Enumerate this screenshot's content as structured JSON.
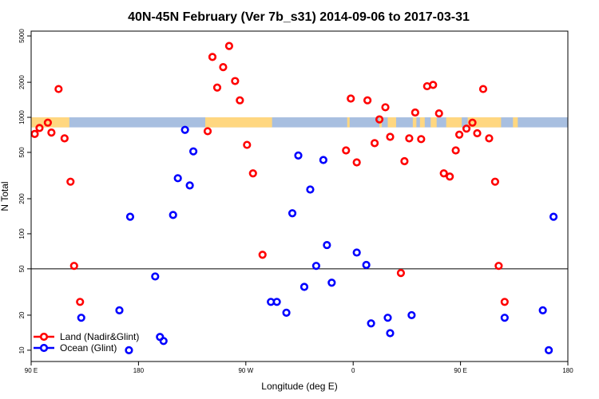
{
  "chart_data": {
    "type": "scatter",
    "title": "40N-45N February (Ver 7b_s31)   2014-09-06 to 2017-03-31",
    "xlabel": "Longitude (deg E)",
    "ylabel": "N Total",
    "xscale": "linear",
    "yscale": "log",
    "xlim": [
      90,
      540
    ],
    "ylim": [
      8,
      5500
    ],
    "x_tick_values": [
      90,
      180,
      270,
      360,
      450,
      540
    ],
    "x_tick_labels": [
      "90 E",
      "180",
      "90 W",
      "0",
      "90 E",
      "180"
    ],
    "y_tick_values": [
      10,
      20,
      50,
      100,
      200,
      500,
      1000,
      2000,
      5000
    ],
    "y_tick_labels": [
      "10",
      "20",
      "50",
      "100",
      "200",
      "500",
      "1000",
      "2000",
      "5000"
    ],
    "reference_lines_y": [
      50
    ],
    "land_ocean_strip": {
      "y_range": [
        820,
        1000
      ],
      "land_color": "#ffd780",
      "ocean_color": "#a8bfe0",
      "land_x_ranges": [
        [
          90,
          122
        ],
        [
          236,
          292
        ],
        [
          355,
          357
        ],
        [
          382,
          384
        ],
        [
          389,
          396
        ],
        [
          410,
          413
        ],
        [
          416,
          420
        ],
        [
          425,
          430
        ],
        [
          438,
          451
        ],
        [
          456,
          484
        ],
        [
          494,
          498
        ]
      ]
    },
    "legend_position": "bottom-left",
    "series": [
      {
        "name": "Land (Nadir&Glint)",
        "color": "#ff0000",
        "points": [
          {
            "x": 93,
            "y": 720
          },
          {
            "x": 97,
            "y": 810
          },
          {
            "x": 104,
            "y": 900
          },
          {
            "x": 107,
            "y": 740
          },
          {
            "x": 113,
            "y": 1750
          },
          {
            "x": 118,
            "y": 660
          },
          {
            "x": 123,
            "y": 280
          },
          {
            "x": 126,
            "y": 53
          },
          {
            "x": 131,
            "y": 26
          },
          {
            "x": 238,
            "y": 760
          },
          {
            "x": 242,
            "y": 3300
          },
          {
            "x": 246,
            "y": 1800
          },
          {
            "x": 251,
            "y": 2700
          },
          {
            "x": 256,
            "y": 4100
          },
          {
            "x": 261,
            "y": 2050
          },
          {
            "x": 265,
            "y": 1400
          },
          {
            "x": 271,
            "y": 580
          },
          {
            "x": 276,
            "y": 330
          },
          {
            "x": 284,
            "y": 66
          },
          {
            "x": 354,
            "y": 520
          },
          {
            "x": 358,
            "y": 1450
          },
          {
            "x": 363,
            "y": 410
          },
          {
            "x": 372,
            "y": 1400
          },
          {
            "x": 378,
            "y": 600
          },
          {
            "x": 382,
            "y": 960
          },
          {
            "x": 387,
            "y": 1220
          },
          {
            "x": 391,
            "y": 680
          },
          {
            "x": 400,
            "y": 46
          },
          {
            "x": 403,
            "y": 420
          },
          {
            "x": 407,
            "y": 660
          },
          {
            "x": 412,
            "y": 1100
          },
          {
            "x": 417,
            "y": 650
          },
          {
            "x": 422,
            "y": 1850
          },
          {
            "x": 427,
            "y": 1900
          },
          {
            "x": 432,
            "y": 1080
          },
          {
            "x": 436,
            "y": 330
          },
          {
            "x": 441,
            "y": 310
          },
          {
            "x": 446,
            "y": 520
          },
          {
            "x": 449,
            "y": 710
          },
          {
            "x": 455,
            "y": 800
          },
          {
            "x": 460,
            "y": 900
          },
          {
            "x": 464,
            "y": 730
          },
          {
            "x": 469,
            "y": 1750
          },
          {
            "x": 474,
            "y": 660
          },
          {
            "x": 479,
            "y": 280
          },
          {
            "x": 482,
            "y": 53
          },
          {
            "x": 487,
            "y": 26
          }
        ]
      },
      {
        "name": "Ocean (Glint)",
        "color": "#0000ff",
        "points": [
          {
            "x": 132,
            "y": 19
          },
          {
            "x": 164,
            "y": 22
          },
          {
            "x": 172,
            "y": 10
          },
          {
            "x": 173,
            "y": 140
          },
          {
            "x": 194,
            "y": 43
          },
          {
            "x": 198,
            "y": 13
          },
          {
            "x": 201,
            "y": 12
          },
          {
            "x": 209,
            "y": 145
          },
          {
            "x": 213,
            "y": 300
          },
          {
            "x": 219,
            "y": 780
          },
          {
            "x": 223,
            "y": 260
          },
          {
            "x": 226,
            "y": 510
          },
          {
            "x": 291,
            "y": 26
          },
          {
            "x": 296,
            "y": 26
          },
          {
            "x": 304,
            "y": 21
          },
          {
            "x": 309,
            "y": 150
          },
          {
            "x": 314,
            "y": 470
          },
          {
            "x": 319,
            "y": 35
          },
          {
            "x": 324,
            "y": 240
          },
          {
            "x": 329,
            "y": 53
          },
          {
            "x": 335,
            "y": 430
          },
          {
            "x": 338,
            "y": 80
          },
          {
            "x": 342,
            "y": 38
          },
          {
            "x": 363,
            "y": 69
          },
          {
            "x": 371,
            "y": 54
          },
          {
            "x": 375,
            "y": 17
          },
          {
            "x": 389,
            "y": 19
          },
          {
            "x": 391,
            "y": 14
          },
          {
            "x": 409,
            "y": 20
          },
          {
            "x": 519,
            "y": 22
          },
          {
            "x": 524,
            "y": 10
          },
          {
            "x": 528,
            "y": 140
          },
          {
            "x": 487,
            "y": 19
          }
        ]
      }
    ]
  }
}
